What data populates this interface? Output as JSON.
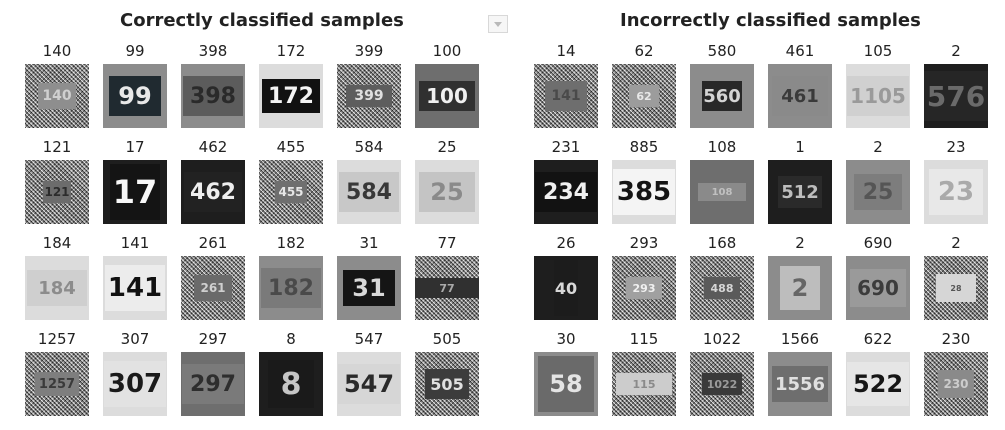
{
  "titles": {
    "left": "Correctly classified samples",
    "right": "Incorrectly classified samples"
  },
  "correct": [
    [
      {
        "label": "140",
        "digits": "140",
        "style": "noise",
        "plate_bg": "#8e8e8e",
        "fg": "#d0d0d0",
        "size": 14,
        "w": 38,
        "h": 26
      },
      {
        "label": "99",
        "digits": "99",
        "style": "t-mid",
        "plate_bg": "#202a30",
        "fg": "#e8e8e8",
        "size": 24,
        "w": 52,
        "h": 40
      },
      {
        "label": "398",
        "digits": "398",
        "style": "t-mid",
        "plate_bg": "#5c5c5c",
        "fg": "#2a2a2a",
        "size": 22,
        "w": 60,
        "h": 40
      },
      {
        "label": "172",
        "digits": "172",
        "style": "t-light",
        "plate_bg": "#111111",
        "fg": "#f4f4f4",
        "size": 22,
        "w": 58,
        "h": 34
      },
      {
        "label": "399",
        "digits": "399",
        "style": "noise",
        "plate_bg": "#5d5d5d",
        "fg": "#e0e0e0",
        "size": 14,
        "w": 46,
        "h": 22
      },
      {
        "label": "100",
        "digits": "100",
        "style": "t-gray",
        "plate_bg": "#303030",
        "fg": "#f0f0f0",
        "size": 20,
        "w": 56,
        "h": 30
      }
    ],
    [
      {
        "label": "121",
        "digits": "121",
        "style": "noise",
        "plate_bg": "#6c6c6c",
        "fg": "#2c2c2c",
        "size": 12,
        "w": 28,
        "h": 22
      },
      {
        "label": "17",
        "digits": "17",
        "style": "t-dark",
        "plate_bg": "#141414",
        "fg": "#f8f8f8",
        "size": 32,
        "w": 50,
        "h": 56
      },
      {
        "label": "462",
        "digits": "462",
        "style": "t-dark",
        "plate_bg": "#222222",
        "fg": "#eeeeee",
        "size": 22,
        "w": 58,
        "h": 40
      },
      {
        "label": "455",
        "digits": "455",
        "style": "noise",
        "plate_bg": "#6f6f6f",
        "fg": "#e6e6e6",
        "size": 12,
        "w": 32,
        "h": 22
      },
      {
        "label": "584",
        "digits": "584",
        "style": "t-light",
        "plate_bg": "#c8c8c8",
        "fg": "#383838",
        "size": 22,
        "w": 60,
        "h": 40
      },
      {
        "label": "25",
        "digits": "25",
        "style": "t-light",
        "plate_bg": "#c4c4c4",
        "fg": "#8a8a8a",
        "size": 24,
        "w": 56,
        "h": 40
      }
    ],
    [
      {
        "label": "184",
        "digits": "184",
        "style": "t-light",
        "plate_bg": "#cfcfcf",
        "fg": "#8c8c8c",
        "size": 18,
        "w": 60,
        "h": 36
      },
      {
        "label": "141",
        "digits": "141",
        "style": "t-light",
        "plate_bg": "#ececec",
        "fg": "#111111",
        "size": 26,
        "w": 60,
        "h": 46
      },
      {
        "label": "261",
        "digits": "261",
        "style": "noise",
        "plate_bg": "#6a6a6a",
        "fg": "#cfcfcf",
        "size": 12,
        "w": 38,
        "h": 26
      },
      {
        "label": "182",
        "digits": "182",
        "style": "t-mid",
        "plate_bg": "#7a7a7a",
        "fg": "#4a4a4a",
        "size": 22,
        "w": 60,
        "h": 40
      },
      {
        "label": "31",
        "digits": "31",
        "style": "t-mid",
        "plate_bg": "#151515",
        "fg": "#d8d8d8",
        "size": 24,
        "w": 52,
        "h": 36
      },
      {
        "label": "77",
        "digits": "77",
        "style": "noise",
        "plate_bg": "#303030",
        "fg": "#aaaaaa",
        "size": 11,
        "w": 64,
        "h": 20
      }
    ],
    [
      {
        "label": "1257",
        "digits": "1257",
        "style": "noise",
        "plate_bg": "#7e7e7e",
        "fg": "#3a3a3a",
        "size": 13,
        "w": 44,
        "h": 24
      },
      {
        "label": "307",
        "digits": "307",
        "style": "t-light",
        "plate_bg": "#e2e2e2",
        "fg": "#1a1a1a",
        "size": 26,
        "w": 62,
        "h": 46
      },
      {
        "label": "297",
        "digits": "297",
        "style": "t-gray",
        "plate_bg": "#7a7a7a",
        "fg": "#2e2e2e",
        "size": 22,
        "w": 62,
        "h": 40
      },
      {
        "label": "8",
        "digits": "8",
        "style": "t-dark",
        "plate_bg": "#1a1a1a",
        "fg": "#c6c6c6",
        "size": 30,
        "w": 46,
        "h": 48
      },
      {
        "label": "547",
        "digits": "547",
        "style": "t-light",
        "plate_bg": "#d6d6d6",
        "fg": "#2a2a2a",
        "size": 24,
        "w": 62,
        "h": 40
      },
      {
        "label": "505",
        "digits": "505",
        "style": "noise",
        "plate_bg": "#3c3c3c",
        "fg": "#e0e0e0",
        "size": 16,
        "w": 44,
        "h": 30
      }
    ]
  ],
  "incorrect": [
    [
      {
        "label": "14",
        "digits": "141",
        "style": "noise",
        "plate_bg": "#6e6e6e",
        "fg": "#4a4a4a",
        "size": 14,
        "w": 42,
        "h": 30
      },
      {
        "label": "62",
        "digits": "62",
        "style": "noise",
        "plate_bg": "#9c9c9c",
        "fg": "#e8e8e8",
        "size": 11,
        "w": 30,
        "h": 22
      },
      {
        "label": "580",
        "digits": "560",
        "style": "t-mid",
        "plate_bg": "#282828",
        "fg": "#d4d4d4",
        "size": 18,
        "w": 40,
        "h": 30
      },
      {
        "label": "461",
        "digits": "461",
        "style": "t-mid",
        "plate_bg": "#8a8a8a",
        "fg": "#3a3a3a",
        "size": 18,
        "w": 56,
        "h": 40
      },
      {
        "label": "105",
        "digits": "1105",
        "style": "t-light",
        "plate_bg": "#d0d0d0",
        "fg": "#9a9a9a",
        "size": 20,
        "w": 62,
        "h": 40
      },
      {
        "label": "2",
        "digits": "576",
        "style": "t-dark",
        "plate_bg": "#262626",
        "fg": "#6a6a6a",
        "size": 28,
        "w": 64,
        "h": 50
      }
    ],
    [
      {
        "label": "231",
        "digits": "234",
        "style": "t-dark",
        "plate_bg": "#121212",
        "fg": "#f0f0f0",
        "size": 22,
        "w": 62,
        "h": 40
      },
      {
        "label": "885",
        "digits": "385",
        "style": "t-light",
        "plate_bg": "#f4f4f4",
        "fg": "#141414",
        "size": 26,
        "w": 62,
        "h": 46
      },
      {
        "label": "108",
        "digits": "108",
        "style": "t-gray",
        "plate_bg": "#8a8a8a",
        "fg": "#c0c0c0",
        "size": 10,
        "w": 48,
        "h": 18
      },
      {
        "label": "1",
        "digits": "512",
        "style": "t-dark",
        "plate_bg": "#2a2a2a",
        "fg": "#bdbdbd",
        "size": 18,
        "w": 44,
        "h": 32
      },
      {
        "label": "2",
        "digits": "25",
        "style": "t-mid",
        "plate_bg": "#7d7d7d",
        "fg": "#555555",
        "size": 22,
        "w": 48,
        "h": 36
      },
      {
        "label": "23",
        "digits": "23",
        "style": "t-light",
        "plate_bg": "#e8e8e8",
        "fg": "#aaaaaa",
        "size": 26,
        "w": 54,
        "h": 46
      }
    ],
    [
      {
        "label": "26",
        "digits": "40",
        "style": "t-dark",
        "plate_bg": "#1c1c1c",
        "fg": "#d8d8d8",
        "size": 16,
        "w": 24,
        "h": 56
      },
      {
        "label": "293",
        "digits": "293",
        "style": "noise",
        "plate_bg": "#a0a0a0",
        "fg": "#f0f0f0",
        "size": 11,
        "w": 36,
        "h": 22
      },
      {
        "label": "168",
        "digits": "488",
        "style": "noise",
        "plate_bg": "#5a5a5a",
        "fg": "#d6d6d6",
        "size": 11,
        "w": 36,
        "h": 22
      },
      {
        "label": "2",
        "digits": "2",
        "style": "t-mid",
        "plate_bg": "#bdbdbd",
        "fg": "#666666",
        "size": 24,
        "w": 40,
        "h": 44
      },
      {
        "label": "690",
        "digits": "690",
        "style": "t-mid",
        "plate_bg": "#9a9a9a",
        "fg": "#3c3c3c",
        "size": 20,
        "w": 56,
        "h": 38
      },
      {
        "label": "2",
        "digits": "28",
        "style": "noise",
        "plate_bg": "#d6d6d6",
        "fg": "#555555",
        "size": 8,
        "w": 40,
        "h": 28
      }
    ],
    [
      {
        "label": "30",
        "digits": "58",
        "style": "t-mid",
        "plate_bg": "#6a6a6a",
        "fg": "#e4e4e4",
        "size": 24,
        "w": 56,
        "h": 56
      },
      {
        "label": "115",
        "digits": "115",
        "style": "noise",
        "plate_bg": "#cccccc",
        "fg": "#8a8a8a",
        "size": 11,
        "w": 56,
        "h": 22
      },
      {
        "label": "1022",
        "digits": "1022",
        "style": "noise",
        "plate_bg": "#3a3a3a",
        "fg": "#9a9a9a",
        "size": 11,
        "w": 40,
        "h": 22
      },
      {
        "label": "1566",
        "digits": "1556",
        "style": "t-mid",
        "plate_bg": "#6e6e6e",
        "fg": "#e0e0e0",
        "size": 18,
        "w": 56,
        "h": 36
      },
      {
        "label": "622",
        "digits": "522",
        "style": "t-light",
        "plate_bg": "#e6e6e6",
        "fg": "#161616",
        "size": 24,
        "w": 62,
        "h": 44
      },
      {
        "label": "230",
        "digits": "230",
        "style": "noise",
        "plate_bg": "#8a8a8a",
        "fg": "#cccccc",
        "size": 12,
        "w": 36,
        "h": 28
      }
    ]
  ]
}
